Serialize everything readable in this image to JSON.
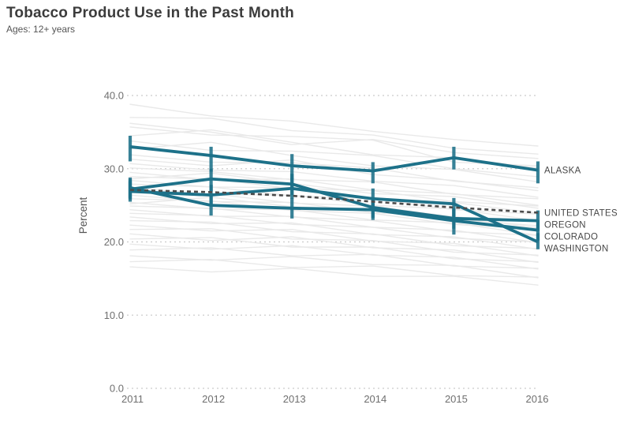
{
  "header": {
    "title": "Tobacco Product Use in the Past Month",
    "subtitle": "Ages: 12+ years"
  },
  "colors": {
    "highlight_teal": "#1d7189",
    "us_line": "#4b4b4b",
    "gridline": "#cbcbcb",
    "background_line": "#e9e9e9",
    "tick_label": "#6f6f6f",
    "series_label": "#474747",
    "axis_title": "#555555"
  },
  "chart_data": {
    "type": "line",
    "x": [
      2011,
      2012,
      2013,
      2014,
      2015,
      2016
    ],
    "xlabel": "",
    "ylabel": "Percent",
    "ylim": [
      0,
      40
    ],
    "yticks": [
      40,
      30,
      20,
      10,
      0
    ],
    "ytick_labels": [
      "40.0",
      "30.0",
      "20.0",
      "10.0",
      "0.0"
    ],
    "grid": "dashed-horizontal",
    "legend_position": "right-inline-labels",
    "series": [
      {
        "name": "ALASKA",
        "style": "solid",
        "values": [
          33.0,
          31.8,
          30.4,
          29.7,
          31.5,
          29.8
        ],
        "ci": [
          [
            31.0,
            34.5
          ],
          [
            29.6,
            33.0
          ],
          [
            28.6,
            32.0
          ],
          [
            28.0,
            30.9
          ],
          [
            29.9,
            33.0
          ],
          [
            28.0,
            31.0
          ]
        ]
      },
      {
        "name": "OREGON",
        "style": "solid",
        "values": [
          27.2,
          28.6,
          27.9,
          24.7,
          23.2,
          22.9
        ],
        "ci": [
          [
            25.8,
            28.6
          ],
          [
            26.9,
            30.0
          ],
          [
            26.4,
            29.3
          ],
          [
            23.3,
            26.1
          ],
          [
            21.8,
            24.6
          ],
          [
            21.5,
            24.3
          ]
        ]
      },
      {
        "name": "COLORADO",
        "style": "solid",
        "values": [
          27.4,
          25.0,
          24.6,
          24.4,
          22.9,
          21.6
        ],
        "ci": [
          [
            26.0,
            28.8
          ],
          [
            23.6,
            26.4
          ],
          [
            23.2,
            26.0
          ],
          [
            23.0,
            25.8
          ],
          [
            21.0,
            24.4
          ],
          [
            20.2,
            23.0
          ]
        ]
      },
      {
        "name": "WASHINGTON",
        "style": "solid",
        "values": [
          26.9,
          26.4,
          27.3,
          25.9,
          25.2,
          20.0
        ],
        "ci": [
          [
            25.5,
            28.3
          ],
          [
            25.0,
            27.8
          ],
          [
            25.9,
            28.7
          ],
          [
            24.5,
            27.3
          ],
          [
            23.5,
            26.0
          ],
          [
            19.0,
            21.2
          ]
        ]
      },
      {
        "name": "UNITED STATES",
        "style": "dashed",
        "values": [
          27.1,
          26.8,
          26.3,
          25.5,
          24.7,
          24.0
        ]
      }
    ],
    "background_series": [
      [
        38.8,
        37.2,
        36.5,
        35.1,
        34.0,
        33.1
      ],
      [
        37.0,
        36.9,
        35.2,
        34.6,
        32.8,
        32.0
      ],
      [
        36.2,
        35.0,
        33.3,
        34.0,
        32.2,
        31.4
      ],
      [
        35.7,
        34.6,
        34.4,
        33.9,
        30.9,
        30.4
      ],
      [
        34.5,
        35.3,
        33.6,
        31.9,
        31.5,
        30.1
      ],
      [
        33.8,
        32.5,
        32.4,
        31.8,
        30.0,
        28.9
      ],
      [
        32.7,
        33.6,
        31.8,
        30.4,
        29.9,
        28.2
      ],
      [
        31.9,
        30.9,
        30.8,
        30.1,
        28.3,
        27.4
      ],
      [
        31.3,
        30.4,
        31.2,
        29.2,
        28.4,
        27.0
      ],
      [
        30.7,
        29.8,
        29.6,
        28.3,
        27.7,
        26.1
      ],
      [
        30.1,
        29.6,
        28.5,
        28.2,
        26.5,
        25.9
      ],
      [
        29.5,
        28.5,
        28.6,
        27.1,
        26.6,
        25.0
      ],
      [
        28.9,
        28.6,
        27.3,
        27.0,
        25.5,
        24.9
      ],
      [
        28.6,
        29.4,
        28.0,
        26.6,
        26.2,
        24.6
      ],
      [
        28.4,
        27.5,
        27.4,
        26.0,
        25.4,
        23.9
      ],
      [
        27.9,
        27.5,
        26.3,
        25.9,
        24.4,
        23.8
      ],
      [
        27.4,
        26.5,
        26.4,
        25.0,
        24.5,
        22.9
      ],
      [
        26.9,
        26.6,
        25.3,
        24.9,
        23.4,
        22.8
      ],
      [
        26.4,
        25.5,
        25.4,
        24.0,
        23.5,
        21.9
      ],
      [
        25.9,
        25.6,
        24.3,
        23.9,
        22.4,
        21.8
      ],
      [
        25.4,
        24.5,
        24.4,
        23.0,
        22.6,
        20.9
      ],
      [
        25.2,
        26.1,
        24.8,
        24.5,
        23.1,
        22.2
      ],
      [
        24.9,
        24.6,
        23.4,
        22.9,
        21.4,
        20.9
      ],
      [
        24.4,
        23.5,
        23.5,
        22.0,
        21.6,
        19.9
      ],
      [
        23.9,
        23.6,
        22.4,
        22.0,
        20.5,
        20.0
      ],
      [
        23.4,
        22.5,
        22.6,
        21.0,
        20.7,
        19.0
      ],
      [
        22.9,
        22.7,
        21.4,
        21.1,
        19.5,
        19.1
      ],
      [
        22.3,
        21.5,
        21.7,
        20.1,
        19.8,
        18.1
      ],
      [
        21.7,
        21.8,
        20.4,
        20.2,
        18.6,
        18.2
      ],
      [
        21.1,
        20.2,
        20.7,
        19.2,
        18.9,
        17.2
      ],
      [
        20.4,
        20.6,
        19.3,
        19.3,
        17.7,
        17.3
      ],
      [
        19.7,
        19.0,
        19.5,
        18.2,
        17.9,
        16.3
      ],
      [
        18.9,
        19.2,
        18.1,
        18.3,
        16.7,
        16.4
      ],
      [
        18.1,
        17.5,
        18.0,
        16.9,
        16.8,
        15.1
      ],
      [
        17.3,
        17.6,
        16.5,
        16.7,
        15.4,
        15.2
      ],
      [
        16.6,
        15.9,
        16.4,
        15.3,
        15.3,
        14.1
      ]
    ]
  }
}
